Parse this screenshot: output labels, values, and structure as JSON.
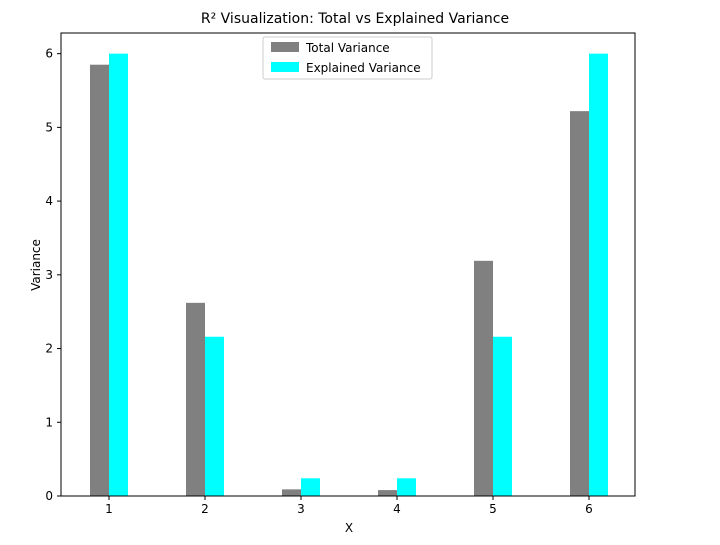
{
  "chart_data": {
    "type": "bar",
    "title": "R² Visualization: Total vs Explained Variance",
    "xlabel": "X",
    "ylabel": "Variance",
    "categories": [
      "1",
      "2",
      "3",
      "4",
      "5",
      "6"
    ],
    "series": [
      {
        "name": "Total Variance",
        "values": [
          5.85,
          2.62,
          0.09,
          0.08,
          3.19,
          5.22
        ],
        "color": "#808080"
      },
      {
        "name": "Explained Variance",
        "values": [
          6.0,
          2.16,
          0.24,
          0.24,
          2.16,
          6.0
        ],
        "color": "#00ffff"
      }
    ],
    "ylim": [
      0,
      6.28
    ],
    "yticks": [
      "0",
      "1",
      "2",
      "3",
      "4",
      "5",
      "6"
    ],
    "grid": false,
    "legend_position": "top-center"
  }
}
